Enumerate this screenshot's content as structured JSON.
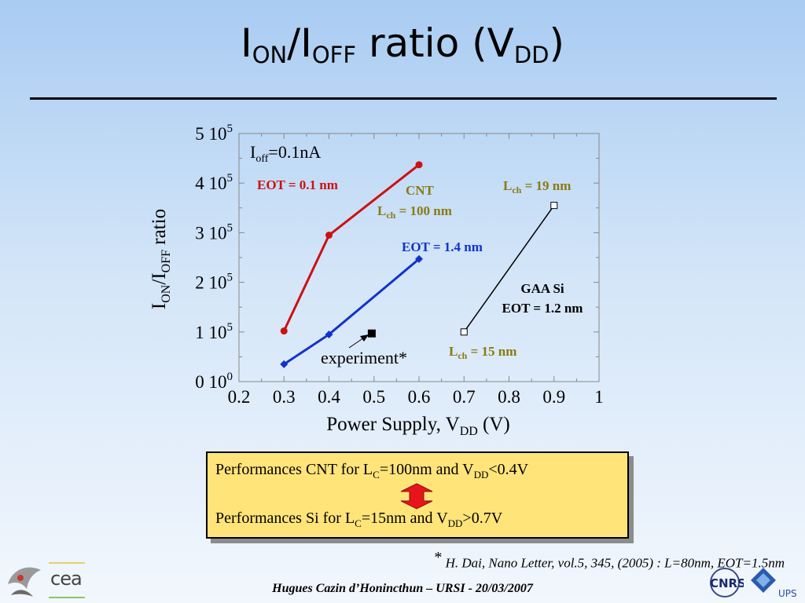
{
  "title": {
    "main": "I",
    "sub1": "ON",
    "sep": "/I",
    "sub2": "OFF",
    "rest": " ratio (V",
    "sub3": "DD",
    "close": ")"
  },
  "chart_data": {
    "type": "line",
    "xlabel": "Power Supply, V",
    "xlabel_sub": "DD",
    "xlabel_unit": " (V)",
    "ylabel": "I",
    "ylabel_sub1": "ON",
    "ylabel_mid": "/I",
    "ylabel_sub2": "OFF",
    "ylabel_rest": " ratio",
    "xlim": [
      0.2,
      1.0
    ],
    "ylim": [
      0,
      500000
    ],
    "x_ticks": [
      0.2,
      0.3,
      0.4,
      0.5,
      0.6,
      0.7,
      0.8,
      0.9,
      1.0
    ],
    "x_tick_labels": [
      "0.2",
      "0.3",
      "0.4",
      "0.5",
      "0.6",
      "0.7",
      "0.8",
      "0.9",
      "1"
    ],
    "y_ticks": [
      0,
      100000,
      200000,
      300000,
      400000,
      500000
    ],
    "y_tick_labels": [
      {
        "base": "0 10",
        "exp": "0"
      },
      {
        "base": "1 10",
        "exp": "5"
      },
      {
        "base": "2 10",
        "exp": "5"
      },
      {
        "base": "3 10",
        "exp": "5"
      },
      {
        "base": "4 10",
        "exp": "5"
      },
      {
        "base": "5 10",
        "exp": "5"
      }
    ],
    "series": [
      {
        "name": "EOT = 0.1 nm",
        "color": "#cc1111",
        "marker": "circle",
        "x": [
          0.3,
          0.4,
          0.6
        ],
        "y": [
          102000,
          295000,
          437000
        ]
      },
      {
        "name": "EOT = 1.4 nm",
        "color": "#1133cc",
        "marker": "diamond",
        "x": [
          0.3,
          0.4,
          0.6
        ],
        "y": [
          35000,
          95000,
          247000
        ]
      },
      {
        "name": "GAA Si",
        "color": "#000000",
        "marker": "open-square",
        "x": [
          0.7,
          0.9
        ],
        "y": [
          100000,
          355000
        ]
      },
      {
        "name": "experiment*",
        "color": "#000000",
        "marker": "filled-square",
        "x": [
          0.495
        ],
        "y": [
          97000
        ]
      }
    ],
    "annotations": {
      "ioff": {
        "base": "I",
        "sub": "off",
        "rest": "=0.1nA"
      },
      "eot01": "EOT = 0.1 nm",
      "cnt": "CNT",
      "lch100": {
        "base": "L",
        "sub": "ch",
        "rest": " = 100 nm"
      },
      "eot14": "EOT = 1.4 nm",
      "lch19": {
        "base": "L",
        "sub": "ch",
        "rest": " = 19 nm"
      },
      "gaasi": "GAA Si",
      "eot12": "EOT = 1.2 nm",
      "lch15": {
        "base": "L",
        "sub": "ch",
        "rest": " = 15 nm"
      },
      "experiment": "experiment*"
    }
  },
  "infobox": {
    "line1": {
      "a": "Performances CNT for L",
      "sub1": "C",
      "b": "=100nm and V",
      "sub2": "DD",
      "c": "<0.4V"
    },
    "line2": {
      "a": "Performances Si for L",
      "sub1": "C",
      "b": "=15nm and V",
      "sub2": "DD",
      "c": ">0.7V"
    }
  },
  "reference": {
    "star": "*",
    "text": " H. Dai, Nano Letter, vol.5, 345, (2005) : L=80nm, EOT=1.5nm"
  },
  "author": "Hugues Cazin d’Honincthun – URSI - 20/03/2007",
  "logos": {
    "cea": "cea",
    "ups": "UPS",
    "cnrs_icon": "cnrs-logo-icon",
    "leti_icon": "leti-logo-icon"
  },
  "colors": {
    "cnt_red": "#cc1111",
    "cnt_blue": "#1133cc",
    "annotation_olive": "#8a7a10",
    "box_yellow": "#ffe47a"
  }
}
